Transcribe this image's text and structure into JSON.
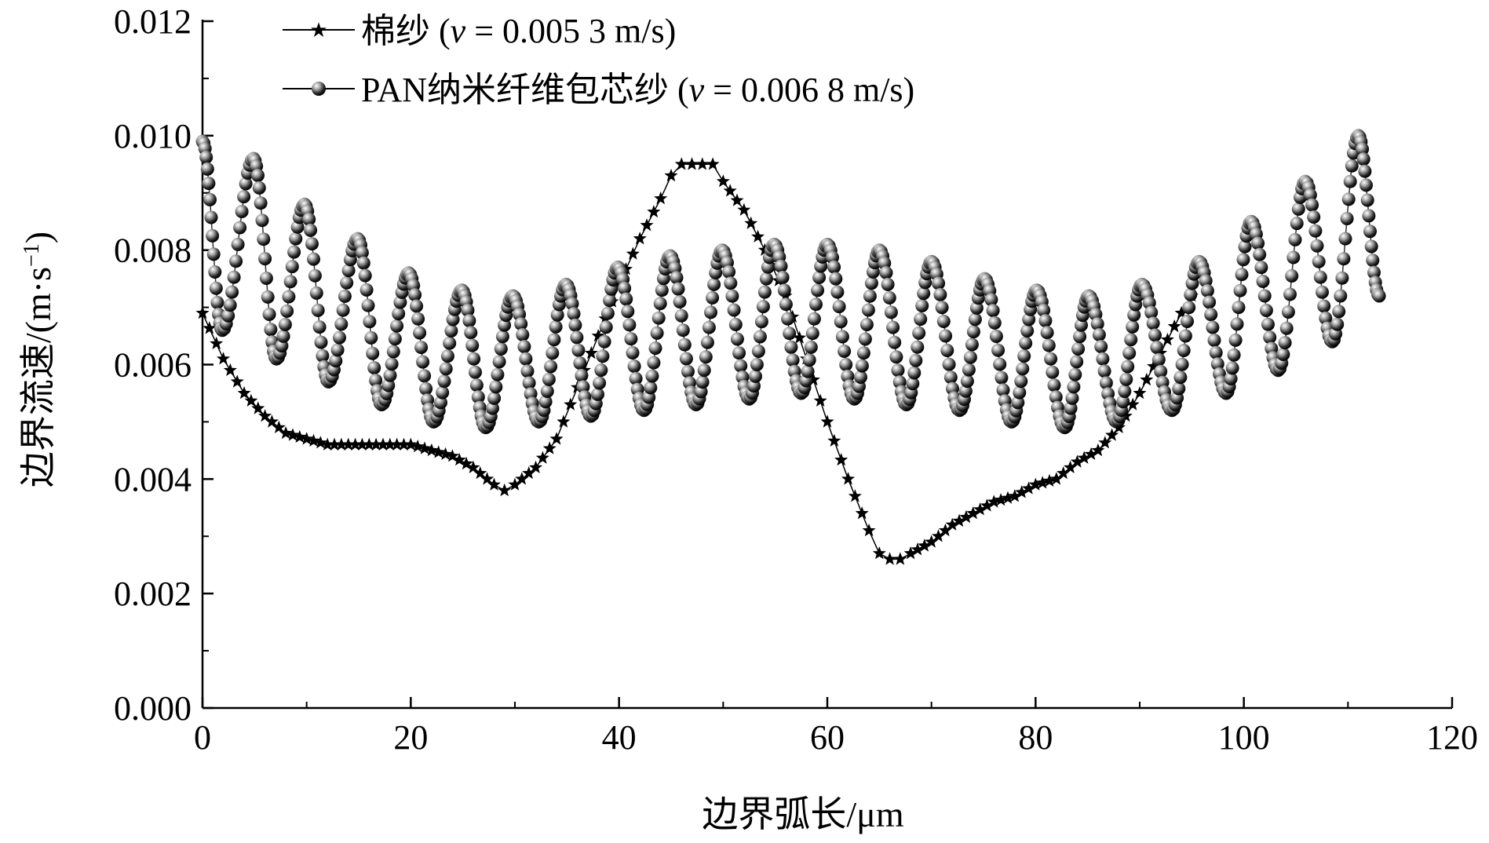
{
  "chart_data": {
    "type": "line",
    "xlabel": "边界弧长/μm",
    "ylabel_main": "边界流速/(m·s",
    "ylabel_sup": "−1",
    "ylabel_close": ")",
    "xlim": [
      0,
      120
    ],
    "ylim": [
      0.0,
      0.012
    ],
    "x_ticks": [
      0,
      20,
      40,
      60,
      80,
      100,
      120
    ],
    "x_tick_labels": [
      "0",
      "20",
      "40",
      "60",
      "80",
      "100",
      "120"
    ],
    "y_ticks": [
      0.0,
      0.002,
      0.004,
      0.006,
      0.008,
      0.01,
      0.012
    ],
    "y_tick_labels": [
      "0.000",
      "0.002",
      "0.004",
      "0.006",
      "0.008",
      "0.010",
      "0.012"
    ],
    "grid": false,
    "legend_position": "top-left",
    "series": [
      {
        "name_prefix": "棉纱 (",
        "name_italic": "v",
        "name_suffix": " = 0.005 3 m/s)",
        "marker": "star",
        "color": "#000000",
        "points": [
          [
            0,
            0.0069
          ],
          [
            2,
            0.0061
          ],
          [
            4,
            0.0055
          ],
          [
            6,
            0.0051
          ],
          [
            8,
            0.0048
          ],
          [
            10,
            0.0047
          ],
          [
            12,
            0.0046
          ],
          [
            14,
            0.0046
          ],
          [
            16,
            0.0046
          ],
          [
            18,
            0.0046
          ],
          [
            20,
            0.0046
          ],
          [
            22,
            0.0045
          ],
          [
            24,
            0.0044
          ],
          [
            26,
            0.0042
          ],
          [
            28,
            0.0039
          ],
          [
            29,
            0.0038
          ],
          [
            30,
            0.0039
          ],
          [
            32,
            0.0042
          ],
          [
            34,
            0.0047
          ],
          [
            36,
            0.0056
          ],
          [
            38,
            0.0065
          ],
          [
            40,
            0.0074
          ],
          [
            42,
            0.0082
          ],
          [
            44,
            0.0089
          ],
          [
            45,
            0.0093
          ],
          [
            46,
            0.0095
          ],
          [
            47,
            0.0095
          ],
          [
            48,
            0.0095
          ],
          [
            49,
            0.0095
          ],
          [
            50,
            0.0092
          ],
          [
            52,
            0.0087
          ],
          [
            54,
            0.008
          ],
          [
            56,
            0.0072
          ],
          [
            58,
            0.0061
          ],
          [
            60,
            0.005
          ],
          [
            62,
            0.004
          ],
          [
            64,
            0.0031
          ],
          [
            65,
            0.0027
          ],
          [
            66,
            0.0026
          ],
          [
            67,
            0.0026
          ],
          [
            68,
            0.0027
          ],
          [
            70,
            0.0029
          ],
          [
            72,
            0.0032
          ],
          [
            74,
            0.0034
          ],
          [
            76,
            0.0036
          ],
          [
            78,
            0.0037
          ],
          [
            80,
            0.0039
          ],
          [
            82,
            0.004
          ],
          [
            84,
            0.0043
          ],
          [
            86,
            0.0045
          ],
          [
            88,
            0.0049
          ],
          [
            90,
            0.0055
          ],
          [
            92,
            0.0062
          ],
          [
            94,
            0.0069
          ],
          [
            95,
            0.0072
          ]
        ]
      },
      {
        "name_prefix": "PAN纳米纤维包芯纱 (",
        "name_italic": "v",
        "name_suffix": " = 0.006 8 m/s)",
        "marker": "sphere",
        "color": "#333333",
        "peaks": [
          [
            0,
            0.0099
          ],
          [
            4.9,
            0.0096
          ],
          [
            9.8,
            0.0088
          ],
          [
            14.9,
            0.0082
          ],
          [
            19.8,
            0.0076
          ],
          [
            24.9,
            0.0073
          ],
          [
            29.8,
            0.0072
          ],
          [
            34.9,
            0.0074
          ],
          [
            39.9,
            0.0077
          ],
          [
            44.9,
            0.0079
          ],
          [
            49.9,
            0.008
          ],
          [
            54.9,
            0.0081
          ],
          [
            60.0,
            0.0081
          ],
          [
            65.0,
            0.008
          ],
          [
            70.0,
            0.0078
          ],
          [
            75.1,
            0.0075
          ],
          [
            80.1,
            0.0073
          ],
          [
            85.1,
            0.0072
          ],
          [
            90.2,
            0.0074
          ],
          [
            95.7,
            0.0078
          ],
          [
            100.7,
            0.0085
          ],
          [
            105.9,
            0.0092
          ],
          [
            111.0,
            0.01
          ]
        ],
        "troughs": [
          [
            1.9,
            0.0066
          ],
          [
            7.1,
            0.0061
          ],
          [
            12.1,
            0.0057
          ],
          [
            17.2,
            0.0053
          ],
          [
            22.2,
            0.005
          ],
          [
            27.2,
            0.0049
          ],
          [
            32.3,
            0.005
          ],
          [
            37.3,
            0.0051
          ],
          [
            42.4,
            0.0052
          ],
          [
            47.4,
            0.0053
          ],
          [
            52.5,
            0.0054
          ],
          [
            57.5,
            0.0055
          ],
          [
            62.6,
            0.0054
          ],
          [
            67.6,
            0.0053
          ],
          [
            72.7,
            0.0052
          ],
          [
            77.7,
            0.005
          ],
          [
            82.8,
            0.0049
          ],
          [
            87.8,
            0.005
          ],
          [
            93.1,
            0.0052
          ],
          [
            98.3,
            0.0055
          ],
          [
            103.3,
            0.0059
          ],
          [
            108.5,
            0.0064
          ]
        ],
        "end_point": [
          113.0,
          0.0072
        ]
      }
    ]
  }
}
